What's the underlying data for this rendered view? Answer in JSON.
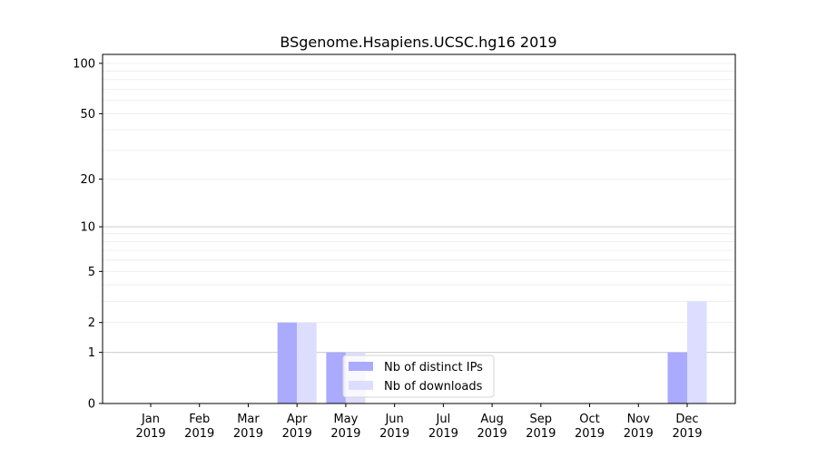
{
  "chart_data": {
    "type": "bar",
    "title": "BSgenome.Hsapiens.UCSC.hg16 2019",
    "xlabel": "",
    "ylabel": "",
    "yscale": "log(1+y)",
    "ylim": [
      0,
      113
    ],
    "yticks": [
      0,
      1,
      2,
      5,
      10,
      20,
      50,
      100
    ],
    "grid": true,
    "legend_position": "lower-center",
    "categories": [
      "Jan\n2019",
      "Feb\n2019",
      "Mar\n2019",
      "Apr\n2019",
      "May\n2019",
      "Jun\n2019",
      "Jul\n2019",
      "Aug\n2019",
      "Sep\n2019",
      "Oct\n2019",
      "Nov\n2019",
      "Dec\n2019"
    ],
    "category_months": [
      "Jan",
      "Feb",
      "Mar",
      "Apr",
      "May",
      "Jun",
      "Jul",
      "Aug",
      "Sep",
      "Oct",
      "Nov",
      "Dec"
    ],
    "category_year": "2019",
    "series": [
      {
        "name": "Nb of distinct IPs",
        "color": "#aaaaff",
        "values": [
          0,
          0,
          0,
          2,
          1,
          0,
          0,
          0,
          0,
          0,
          0,
          1
        ]
      },
      {
        "name": "Nb of downloads",
        "color": "#ddddff",
        "values": [
          0,
          0,
          0,
          2,
          1,
          0,
          0,
          0,
          0,
          0,
          0,
          3
        ]
      }
    ]
  }
}
